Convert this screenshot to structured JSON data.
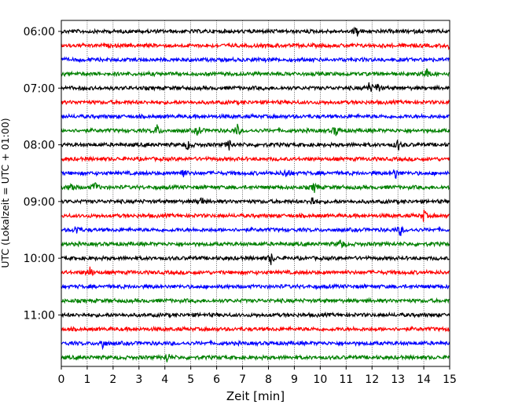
{
  "chart_data": {
    "type": "line",
    "title": "",
    "xlabel": "Zeit  [min]",
    "ylabel": "UTC (Lokalzeit = UTC + 01:00)",
    "xlim": [
      0,
      15
    ],
    "x_ticks": [
      0,
      1,
      2,
      3,
      4,
      5,
      6,
      7,
      8,
      9,
      10,
      11,
      12,
      13,
      14,
      15
    ],
    "y_tick_labels": [
      "06:00",
      "07:00",
      "08:00",
      "09:00",
      "10:00",
      "11:00"
    ],
    "grid": "vertical dotted lines at each minute",
    "trace_interval_minutes": 15,
    "trace_colors": [
      "#000000",
      "#ff0000",
      "#0000ff",
      "#008000"
    ],
    "traces": [
      {
        "start": "06:00",
        "color": "#000000",
        "events_min": [
          11.4
        ]
      },
      {
        "start": "06:15",
        "color": "#ff0000",
        "events_min": [
          15.0
        ]
      },
      {
        "start": "06:30",
        "color": "#0000ff",
        "events_min": []
      },
      {
        "start": "06:45",
        "color": "#008000",
        "events_min": [
          14.1
        ]
      },
      {
        "start": "07:00",
        "color": "#000000",
        "events_min": [
          11.9,
          12.2
        ]
      },
      {
        "start": "07:15",
        "color": "#ff0000",
        "events_min": []
      },
      {
        "start": "07:30",
        "color": "#0000ff",
        "events_min": []
      },
      {
        "start": "07:45",
        "color": "#008000",
        "events_min": [
          3.7,
          5.3,
          6.8,
          10.6
        ]
      },
      {
        "start": "08:00",
        "color": "#000000",
        "events_min": [
          4.9,
          6.5,
          13.0
        ]
      },
      {
        "start": "08:15",
        "color": "#ff0000",
        "events_min": []
      },
      {
        "start": "08:30",
        "color": "#0000ff",
        "events_min": [
          4.7,
          8.7,
          12.9
        ]
      },
      {
        "start": "08:45",
        "color": "#008000",
        "events_min": [
          0.4,
          1.3,
          9.8
        ]
      },
      {
        "start": "09:00",
        "color": "#000000",
        "events_min": [
          5.4,
          9.7
        ]
      },
      {
        "start": "09:15",
        "color": "#ff0000",
        "events_min": [
          14.0
        ]
      },
      {
        "start": "09:30",
        "color": "#0000ff",
        "events_min": [
          0.6,
          13.1
        ]
      },
      {
        "start": "09:45",
        "color": "#008000",
        "events_min": [
          10.8
        ]
      },
      {
        "start": "10:00",
        "color": "#000000",
        "events_min": [
          8.1
        ]
      },
      {
        "start": "10:15",
        "color": "#ff0000",
        "events_min": [
          1.1
        ]
      },
      {
        "start": "10:30",
        "color": "#0000ff",
        "events_min": []
      },
      {
        "start": "10:45",
        "color": "#008000",
        "events_min": []
      },
      {
        "start": "11:00",
        "color": "#000000",
        "events_min": []
      },
      {
        "start": "11:15",
        "color": "#ff0000",
        "events_min": []
      },
      {
        "start": "11:30",
        "color": "#0000ff",
        "events_min": [
          1.6
        ]
      },
      {
        "start": "11:45",
        "color": "#008000",
        "events_min": [
          4.1
        ]
      }
    ]
  }
}
